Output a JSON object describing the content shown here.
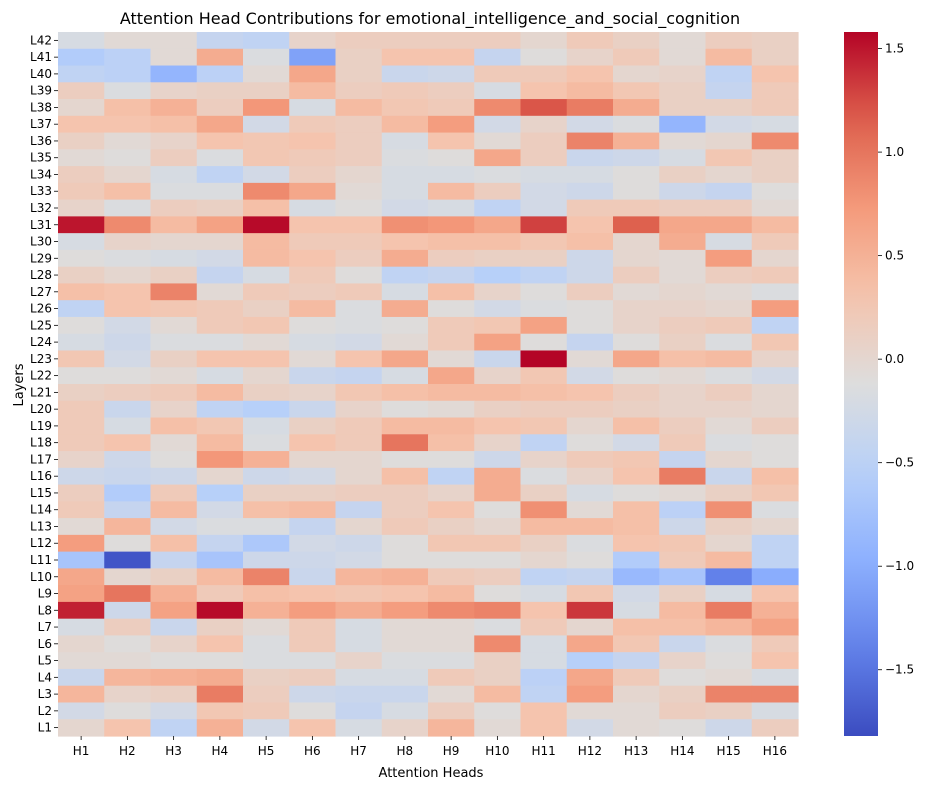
{
  "chart_data": {
    "type": "heatmap",
    "title": "Attention Head Contributions for emotional_intelligence_and_social_cognition",
    "xlabel": "Attention Heads",
    "ylabel": "Layers",
    "x_categories": [
      "H1",
      "H2",
      "H3",
      "H4",
      "H5",
      "H6",
      "H7",
      "H8",
      "H9",
      "H10",
      "H11",
      "H12",
      "H13",
      "H14",
      "H15",
      "H16"
    ],
    "y_categories": [
      "L42",
      "L41",
      "L40",
      "L39",
      "L38",
      "L37",
      "L36",
      "L35",
      "L34",
      "L33",
      "L32",
      "L31",
      "L30",
      "L29",
      "L28",
      "L27",
      "L26",
      "L25",
      "L24",
      "L23",
      "L22",
      "L21",
      "L20",
      "L19",
      "L18",
      "L17",
      "L16",
      "L15",
      "L14",
      "L13",
      "L12",
      "L11",
      "L10",
      "L9",
      "L8",
      "L7",
      "L6",
      "L5",
      "L4",
      "L3",
      "L2",
      "L1"
    ],
    "values": [
      [
        -0.2,
        -0.05,
        -0.05,
        -0.4,
        -0.45,
        0.05,
        0.15,
        0.15,
        0.15,
        0.15,
        0.0,
        0.2,
        0.1,
        -0.05,
        0.15,
        0.1
      ],
      [
        -0.6,
        -0.5,
        -0.05,
        0.55,
        -0.15,
        -1.1,
        0.1,
        0.3,
        0.3,
        -0.4,
        -0.1,
        0.05,
        0.2,
        -0.05,
        0.4,
        0.1
      ],
      [
        -0.45,
        -0.5,
        -0.9,
        -0.5,
        -0.05,
        0.6,
        0.1,
        -0.35,
        -0.3,
        0.2,
        0.2,
        0.3,
        0.0,
        0.05,
        -0.45,
        0.3
      ],
      [
        0.15,
        -0.15,
        0.05,
        0.1,
        0.1,
        0.4,
        0.15,
        0.2,
        0.15,
        -0.2,
        0.3,
        0.4,
        0.25,
        0.1,
        -0.4,
        0.2
      ],
      [
        0.0,
        0.35,
        0.5,
        0.15,
        0.75,
        -0.2,
        0.4,
        0.25,
        0.2,
        0.85,
        1.2,
        0.95,
        0.55,
        0.1,
        0.1,
        0.2
      ],
      [
        0.3,
        0.3,
        0.35,
        0.6,
        -0.25,
        0.2,
        0.15,
        0.4,
        0.7,
        -0.25,
        0.05,
        -0.25,
        -0.15,
        -0.9,
        -0.25,
        -0.2
      ],
      [
        0.1,
        -0.05,
        0.05,
        0.3,
        0.25,
        0.3,
        0.15,
        -0.2,
        0.3,
        -0.05,
        0.15,
        0.9,
        0.5,
        -0.05,
        0.0,
        0.85
      ],
      [
        -0.05,
        -0.1,
        0.15,
        -0.15,
        0.25,
        0.2,
        0.15,
        -0.15,
        -0.1,
        0.6,
        0.15,
        -0.35,
        -0.3,
        -0.2,
        0.25,
        0.1
      ],
      [
        0.15,
        0.0,
        -0.2,
        -0.45,
        -0.25,
        0.15,
        0.0,
        -0.2,
        -0.2,
        -0.15,
        -0.2,
        -0.2,
        -0.1,
        0.1,
        0.0,
        0.1
      ],
      [
        0.2,
        0.35,
        -0.15,
        -0.15,
        0.85,
        0.6,
        -0.05,
        -0.2,
        0.4,
        0.15,
        -0.25,
        -0.3,
        -0.1,
        -0.3,
        -0.4,
        -0.1
      ],
      [
        0.05,
        -0.15,
        0.15,
        0.1,
        0.35,
        -0.2,
        -0.1,
        -0.25,
        -0.2,
        -0.45,
        -0.25,
        0.2,
        0.2,
        0.15,
        0.15,
        -0.05
      ],
      [
        1.5,
        0.85,
        0.4,
        0.65,
        1.55,
        0.3,
        0.3,
        0.8,
        0.75,
        0.6,
        1.3,
        0.3,
        1.15,
        0.6,
        0.6,
        0.4
      ],
      [
        -0.2,
        0.05,
        0.0,
        0.0,
        0.4,
        0.2,
        0.2,
        0.3,
        0.35,
        0.35,
        0.25,
        0.35,
        0.0,
        0.55,
        -0.2,
        0.2
      ],
      [
        -0.1,
        -0.15,
        -0.2,
        -0.25,
        0.4,
        0.3,
        0.15,
        0.55,
        0.15,
        0.1,
        0.1,
        -0.3,
        0.0,
        -0.05,
        0.7,
        0.0
      ],
      [
        0.1,
        0.0,
        0.1,
        -0.4,
        -0.2,
        0.2,
        -0.1,
        -0.45,
        -0.4,
        -0.55,
        -0.45,
        -0.3,
        0.15,
        -0.05,
        0.15,
        0.2
      ],
      [
        0.35,
        0.3,
        0.9,
        -0.05,
        0.2,
        0.15,
        0.2,
        -0.2,
        0.35,
        0.05,
        -0.1,
        0.15,
        -0.05,
        0.0,
        -0.05,
        -0.15
      ],
      [
        -0.45,
        0.3,
        0.25,
        0.2,
        0.1,
        0.4,
        -0.15,
        0.55,
        -0.1,
        -0.25,
        -0.15,
        -0.1,
        0.05,
        0.05,
        0.0,
        0.7
      ],
      [
        -0.1,
        -0.25,
        -0.05,
        0.2,
        0.25,
        -0.1,
        -0.15,
        -0.1,
        0.2,
        0.25,
        0.65,
        -0.1,
        0.05,
        0.15,
        0.2,
        -0.45
      ],
      [
        -0.2,
        -0.3,
        -0.15,
        -0.15,
        -0.05,
        -0.2,
        -0.25,
        -0.05,
        0.2,
        0.65,
        -0.1,
        -0.4,
        -0.1,
        0.1,
        -0.15,
        0.25
      ],
      [
        0.25,
        -0.25,
        0.1,
        0.3,
        0.3,
        -0.05,
        0.3,
        0.6,
        -0.05,
        -0.35,
        1.6,
        -0.05,
        0.6,
        0.35,
        0.4,
        0.05
      ],
      [
        -0.1,
        -0.1,
        -0.05,
        -0.2,
        0.0,
        -0.35,
        -0.4,
        -0.2,
        0.6,
        0.05,
        0.25,
        -0.25,
        -0.1,
        -0.05,
        -0.15,
        -0.25
      ],
      [
        0.1,
        0.15,
        0.2,
        0.4,
        0.1,
        0.05,
        0.25,
        0.35,
        0.4,
        0.4,
        0.35,
        0.3,
        0.15,
        0.05,
        0.15,
        0.0
      ],
      [
        0.2,
        -0.35,
        0.05,
        -0.45,
        -0.55,
        -0.35,
        0.05,
        -0.1,
        -0.05,
        0.1,
        0.15,
        0.15,
        0.1,
        0.05,
        0.05,
        0.0
      ],
      [
        0.2,
        -0.2,
        0.35,
        0.25,
        -0.2,
        0.1,
        0.2,
        0.4,
        0.4,
        0.3,
        0.25,
        0.0,
        0.35,
        0.15,
        -0.05,
        0.15
      ],
      [
        0.2,
        0.3,
        -0.05,
        0.4,
        -0.15,
        0.3,
        0.2,
        1.0,
        0.35,
        0.05,
        -0.45,
        -0.1,
        -0.25,
        0.2,
        -0.15,
        -0.1
      ],
      [
        0.05,
        -0.3,
        -0.1,
        0.75,
        0.5,
        0.0,
        0.0,
        -0.1,
        -0.1,
        -0.3,
        0.05,
        0.2,
        0.25,
        -0.4,
        0.0,
        -0.1
      ],
      [
        -0.3,
        -0.35,
        -0.3,
        0.0,
        -0.3,
        -0.25,
        0.0,
        0.35,
        -0.45,
        0.55,
        -0.15,
        0.05,
        0.3,
        0.95,
        -0.35,
        0.35
      ],
      [
        0.15,
        -0.6,
        0.2,
        -0.55,
        0.1,
        0.1,
        0.15,
        0.15,
        0.05,
        0.55,
        0.1,
        -0.2,
        -0.1,
        -0.05,
        0.1,
        0.25
      ],
      [
        0.2,
        -0.4,
        0.4,
        -0.25,
        0.35,
        0.4,
        -0.4,
        0.15,
        0.3,
        -0.1,
        0.8,
        -0.05,
        0.35,
        -0.5,
        0.8,
        -0.15
      ],
      [
        -0.05,
        0.45,
        -0.25,
        -0.15,
        -0.15,
        -0.4,
        0.0,
        0.2,
        0.1,
        0.0,
        0.4,
        0.4,
        0.35,
        -0.3,
        0.1,
        0.0
      ],
      [
        0.7,
        -0.1,
        0.35,
        -0.4,
        -0.65,
        -0.25,
        -0.3,
        -0.1,
        0.25,
        0.25,
        0.1,
        -0.15,
        0.3,
        0.25,
        0.0,
        -0.45
      ],
      [
        -0.7,
        -1.75,
        -0.4,
        -0.7,
        -0.3,
        -0.3,
        -0.25,
        -0.1,
        -0.1,
        -0.1,
        0.0,
        -0.1,
        -0.6,
        0.2,
        0.4,
        -0.45
      ],
      [
        0.6,
        0.0,
        0.1,
        0.4,
        0.9,
        -0.35,
        0.45,
        0.5,
        0.2,
        0.15,
        -0.45,
        -0.4,
        -0.85,
        -0.7,
        -1.4,
        -1.0
      ],
      [
        0.65,
        1.0,
        0.5,
        0.2,
        0.35,
        0.3,
        0.25,
        0.3,
        0.4,
        -0.1,
        -0.2,
        0.25,
        -0.25,
        0.1,
        -0.2,
        0.3
      ],
      [
        1.45,
        -0.3,
        0.65,
        1.55,
        0.5,
        0.7,
        0.55,
        0.7,
        0.85,
        0.9,
        0.3,
        1.35,
        -0.2,
        0.4,
        0.95,
        0.5
      ],
      [
        -0.2,
        0.15,
        -0.35,
        0.1,
        -0.05,
        0.2,
        -0.2,
        -0.05,
        -0.05,
        -0.15,
        0.2,
        0.0,
        0.35,
        0.35,
        0.45,
        0.65
      ],
      [
        0.0,
        -0.1,
        0.05,
        0.3,
        -0.15,
        0.2,
        -0.2,
        -0.05,
        -0.05,
        0.85,
        -0.2,
        0.6,
        0.25,
        -0.35,
        -0.15,
        0.2
      ],
      [
        -0.05,
        -0.05,
        -0.1,
        -0.1,
        -0.15,
        -0.15,
        0.05,
        -0.15,
        -0.15,
        0.1,
        -0.2,
        -0.55,
        -0.4,
        0.05,
        -0.1,
        0.3
      ],
      [
        -0.35,
        0.45,
        0.5,
        0.55,
        0.1,
        0.15,
        -0.2,
        -0.2,
        0.2,
        0.1,
        -0.5,
        0.6,
        0.2,
        -0.1,
        -0.05,
        -0.2
      ],
      [
        0.45,
        0.05,
        0.1,
        0.95,
        0.15,
        -0.3,
        -0.35,
        -0.35,
        -0.05,
        0.4,
        -0.45,
        0.7,
        0.0,
        0.1,
        0.9,
        0.9
      ],
      [
        -0.25,
        -0.1,
        -0.25,
        0.25,
        0.2,
        -0.1,
        -0.4,
        -0.2,
        0.15,
        -0.1,
        0.3,
        -0.05,
        -0.05,
        0.15,
        0.1,
        -0.2
      ],
      [
        0.0,
        0.3,
        -0.45,
        0.5,
        -0.25,
        0.3,
        -0.2,
        0.05,
        0.45,
        -0.05,
        0.3,
        -0.25,
        -0.05,
        -0.1,
        -0.3,
        0.15
      ]
    ],
    "vmin": -1.82,
    "vmax": 1.58,
    "colormap": "coolwarm",
    "colorbar_ticks": [
      1.5,
      1.0,
      0.5,
      0.0,
      -0.5,
      -1.0,
      -1.5
    ],
    "colorbar_tick_labels": [
      "1.5",
      "1.0",
      "0.5",
      "0.0",
      "−0.5",
      "−1.0",
      "−1.5"
    ],
    "grid": false,
    "legend": "colorbar-right"
  }
}
